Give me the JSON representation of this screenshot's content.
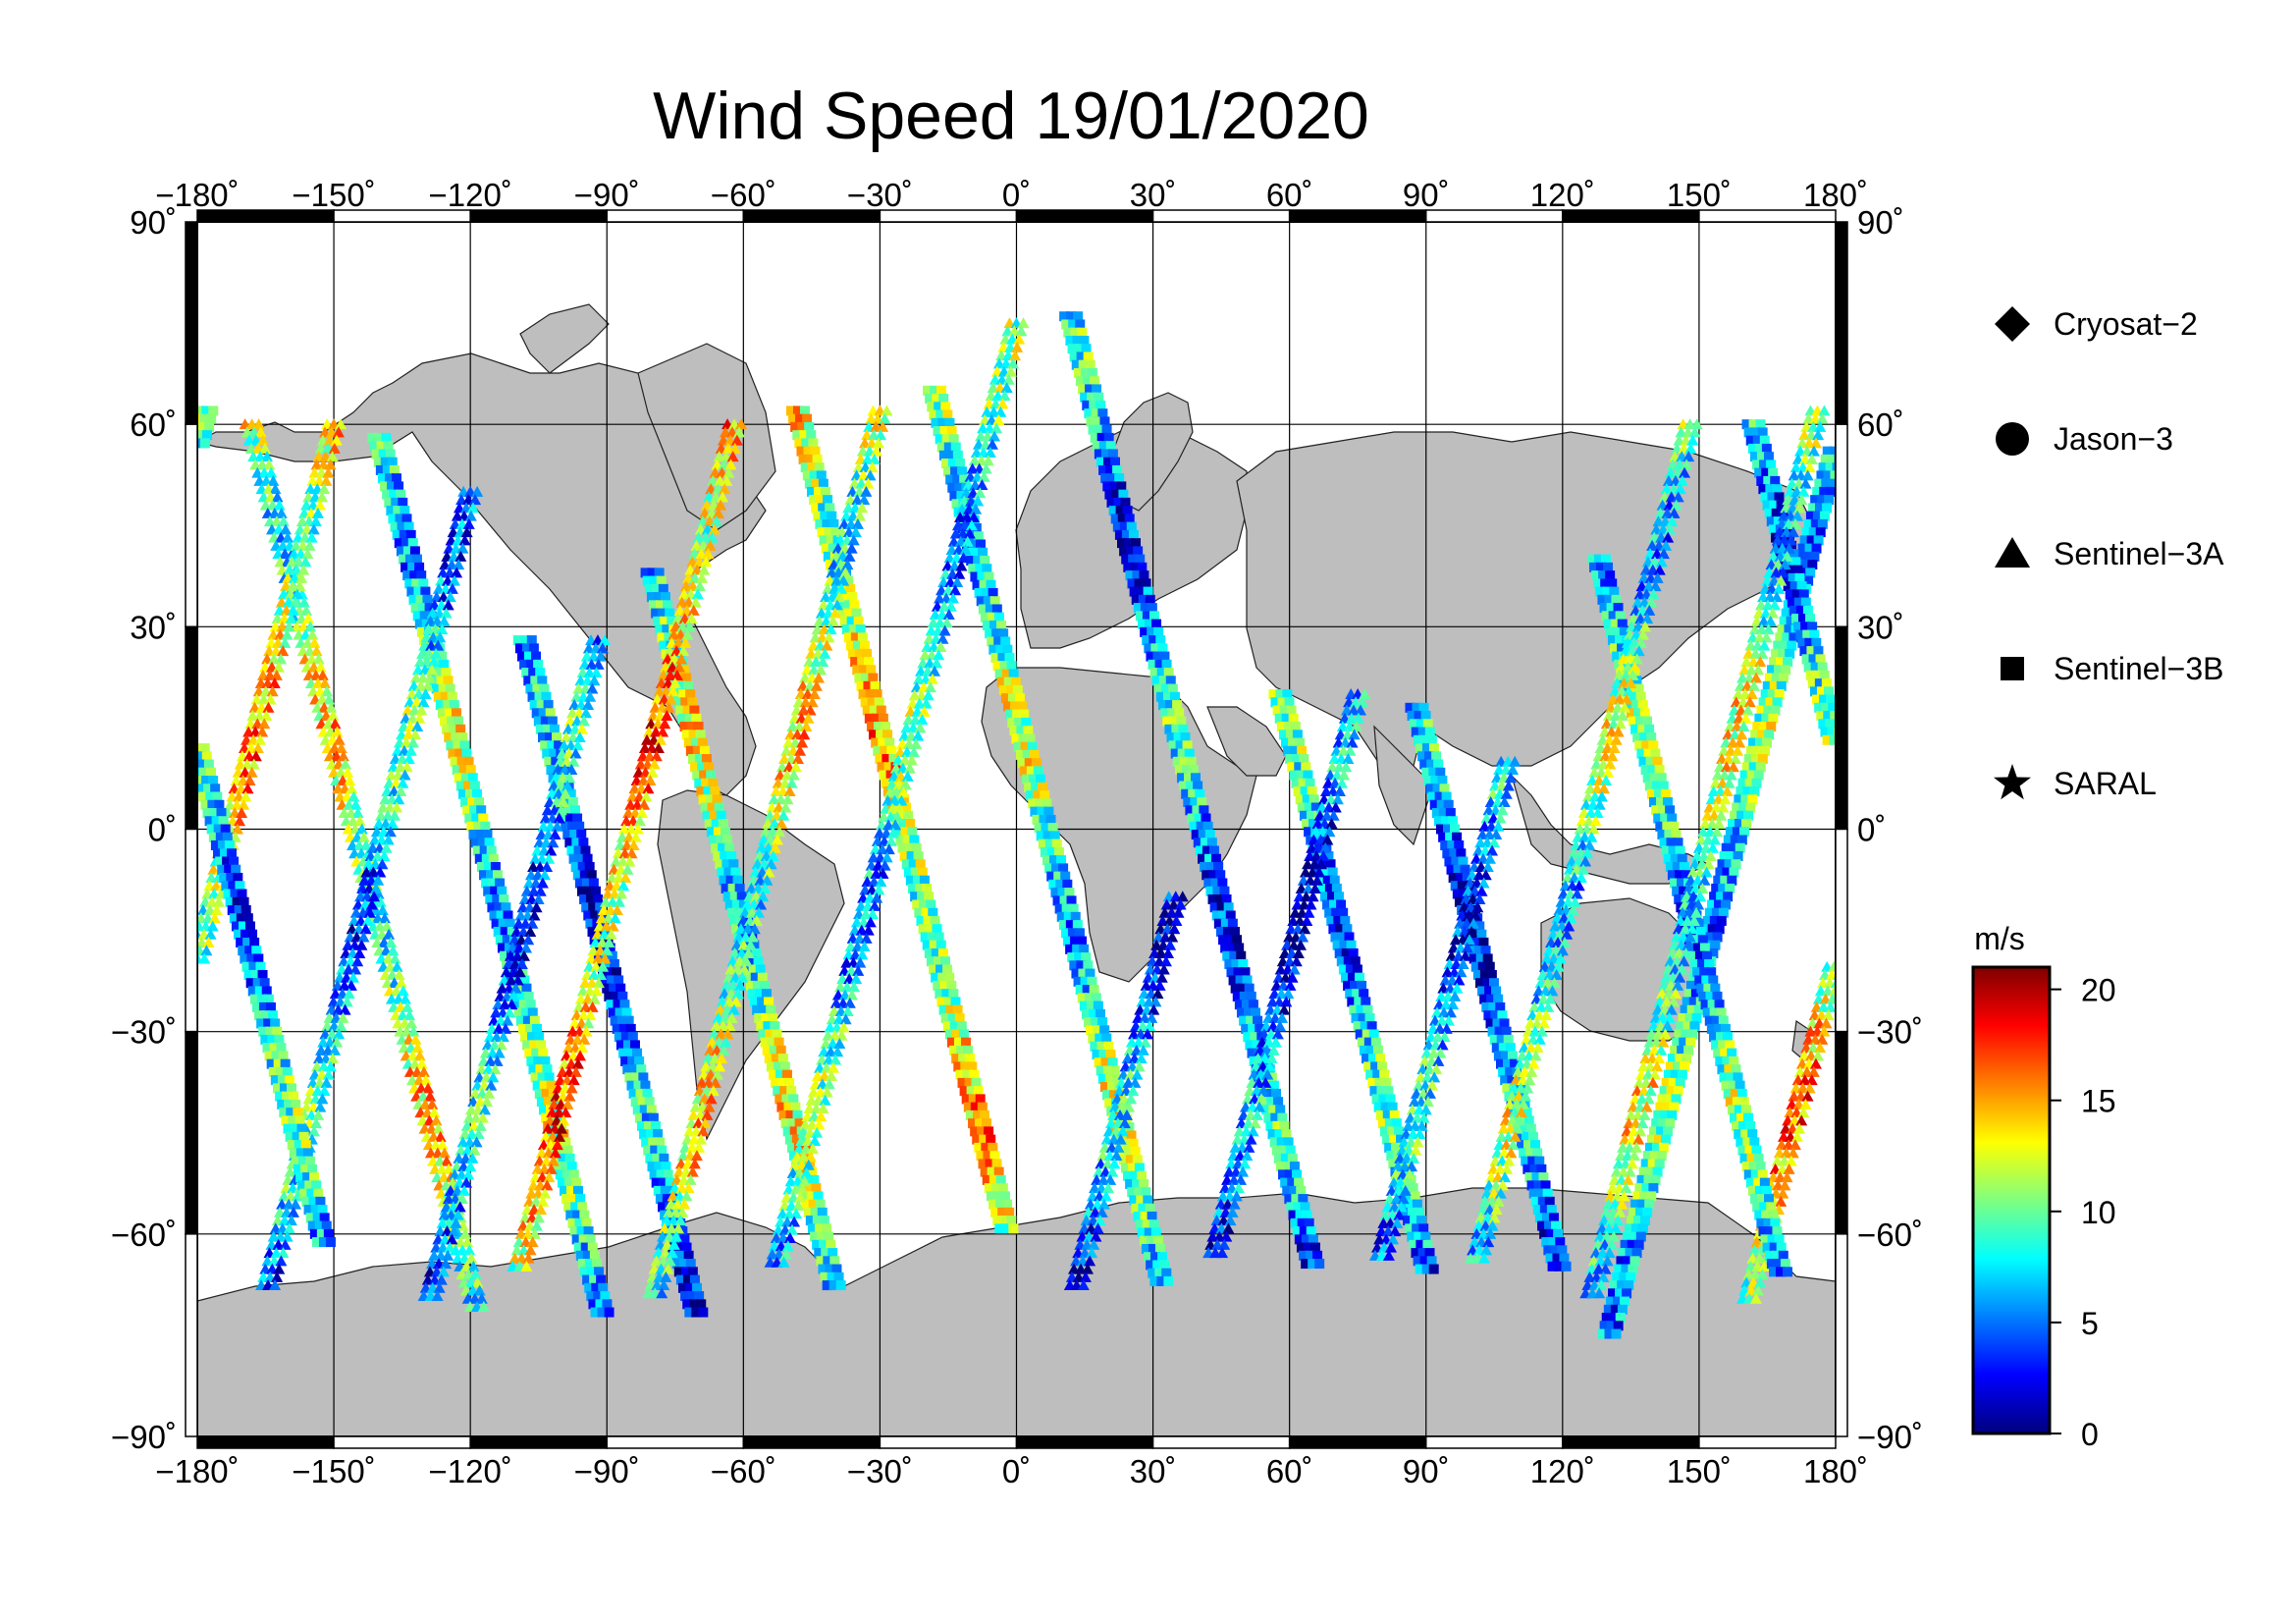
{
  "chart_data": {
    "type": "scatter",
    "title": "Wind Speed 19/01/2020",
    "x_ticks": [
      "−180˚",
      "−150˚",
      "−120˚",
      "−90˚",
      "−60˚",
      "−30˚",
      "0˚",
      "30˚",
      "60˚",
      "90˚",
      "120˚",
      "150˚",
      "180˚"
    ],
    "y_ticks": [
      "90˚",
      "60˚",
      "30˚",
      "0˚",
      "−30˚",
      "−60˚",
      "−90˚"
    ],
    "xlim": [
      -180,
      180
    ],
    "ylim": [
      -90,
      90
    ],
    "grid": true,
    "legend_position": "right",
    "legend": [
      {
        "name": "Cryosat−2",
        "marker": "diamond"
      },
      {
        "name": "Jason−3",
        "marker": "circle"
      },
      {
        "name": "Sentinel−3A",
        "marker": "triangle"
      },
      {
        "name": "Sentinel−3B",
        "marker": "square"
      },
      {
        "name": "SARAL",
        "marker": "star"
      }
    ],
    "colorbar": {
      "unit_label": "m/s",
      "range": [
        0,
        21
      ],
      "ticks": [
        {
          "value": 20,
          "label": "20"
        },
        {
          "value": 15,
          "label": "15"
        },
        {
          "value": 10,
          "label": "10"
        },
        {
          "value": 5,
          "label": "5"
        },
        {
          "value": 0,
          "label": "0"
        }
      ],
      "colors": [
        "#00007f",
        "#0000ff",
        "#007fff",
        "#00ffff",
        "#7fff7f",
        "#ffff00",
        "#ff7f00",
        "#ff0000",
        "#7f0000"
      ]
    },
    "land_color": "#bebebe",
    "ocean_color": "#ffffff",
    "tracks": [
      {
        "series": "Sentinel−3B",
        "lon0": -178,
        "lat0": 62,
        "slope": -0.42,
        "lat_end": -75,
        "wind_base": 8
      },
      {
        "series": "Sentinel−3A",
        "lon0": -168,
        "lat0": 60,
        "slope": 0.42,
        "lat_end": -72,
        "wind_base": 11
      },
      {
        "series": "Sentinel−3A",
        "lon0": -150,
        "lat0": 60,
        "slope": -0.42,
        "lat_end": -70,
        "wind_base": 13
      },
      {
        "series": "Sentinel−3B",
        "lon0": -140,
        "lat0": 58,
        "slope": 0.42,
        "lat_end": -72,
        "wind_base": 9
      },
      {
        "series": "Sentinel−3A",
        "lon0": -120,
        "lat0": 50,
        "slope": -0.42,
        "lat_end": -68,
        "wind_base": 7
      },
      {
        "series": "Sentinel−3B",
        "lon0": -108,
        "lat0": 28,
        "slope": 0.42,
        "lat_end": -72,
        "wind_base": 5
      },
      {
        "series": "Sentinel−3A",
        "lon0": -92,
        "lat0": 28,
        "slope": -0.42,
        "lat_end": -70,
        "wind_base": 6
      },
      {
        "series": "Sentinel−3B",
        "lon0": -80,
        "lat0": 38,
        "slope": 0.42,
        "lat_end": -68,
        "wind_base": 10
      },
      {
        "series": "Sentinel−3A",
        "lon0": -62,
        "lat0": 60,
        "slope": -0.42,
        "lat_end": -65,
        "wind_base": 14
      },
      {
        "series": "Sentinel−3B",
        "lon0": -48,
        "lat0": 62,
        "slope": 0.42,
        "lat_end": -60,
        "wind_base": 12
      },
      {
        "series": "Sentinel−3A",
        "lon0": -30,
        "lat0": 62,
        "slope": -0.42,
        "lat_end": -70,
        "wind_base": 11
      },
      {
        "series": "Sentinel−3B",
        "lon0": -18,
        "lat0": 65,
        "slope": 0.42,
        "lat_end": -68,
        "wind_base": 9
      },
      {
        "series": "Sentinel−3A",
        "lon0": 0,
        "lat0": 75,
        "slope": -0.42,
        "lat_end": -65,
        "wind_base": 8
      },
      {
        "series": "Sentinel−3B",
        "lon0": 12,
        "lat0": 76,
        "slope": 0.42,
        "lat_end": -65,
        "wind_base": 6
      },
      {
        "series": "Sentinel−3A",
        "lon0": 35,
        "lat0": -10,
        "slope": -0.42,
        "lat_end": -68,
        "wind_base": 5
      },
      {
        "series": "Sentinel−3B",
        "lon0": 58,
        "lat0": 20,
        "slope": 0.42,
        "lat_end": -66,
        "wind_base": 7
      },
      {
        "series": "Sentinel−3A",
        "lon0": 75,
        "lat0": 20,
        "slope": -0.42,
        "lat_end": -64,
        "wind_base": 4
      },
      {
        "series": "Sentinel−3B",
        "lon0": 88,
        "lat0": 18,
        "slope": 0.42,
        "lat_end": -66,
        "wind_base": 5
      },
      {
        "series": "Sentinel−3A",
        "lon0": 108,
        "lat0": 10,
        "slope": -0.42,
        "lat_end": -64,
        "wind_base": 6
      },
      {
        "series": "Sentinel−3B",
        "lon0": 128,
        "lat0": 40,
        "slope": 0.42,
        "lat_end": -66,
        "wind_base": 8
      },
      {
        "series": "Sentinel−3A",
        "lon0": 148,
        "lat0": 60,
        "slope": -0.42,
        "lat_end": -64,
        "wind_base": 9
      },
      {
        "series": "Sentinel−3B",
        "lon0": 162,
        "lat0": 60,
        "slope": 0.42,
        "lat_end": -62,
        "wind_base": 7
      },
      {
        "series": "Sentinel−3A",
        "lon0": 176,
        "lat0": 62,
        "slope": -0.42,
        "lat_end": -70,
        "wind_base": 10
      }
    ]
  }
}
